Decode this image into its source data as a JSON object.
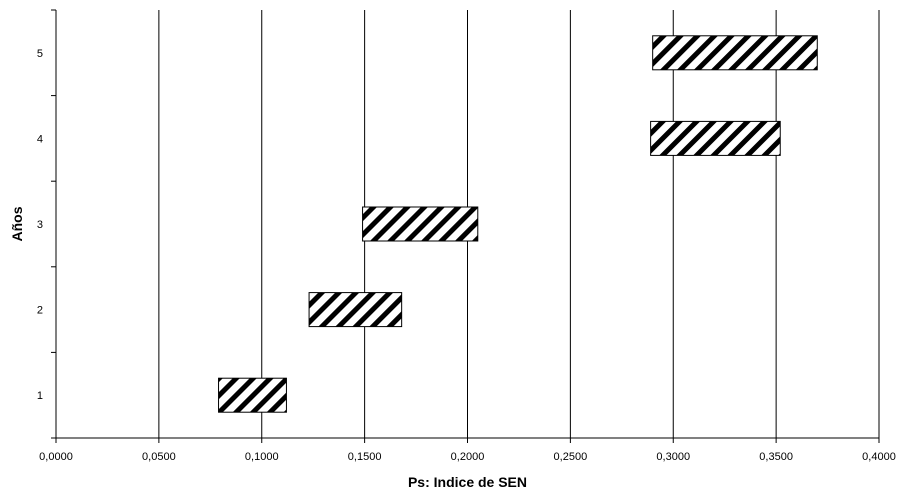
{
  "chart_data": {
    "type": "bar",
    "orientation": "horizontal-floating",
    "title": "",
    "xlabel": "Ps: Indice de SEN",
    "ylabel": "Años",
    "xlim": [
      0,
      0.4
    ],
    "ylim": [
      0.5,
      5.5
    ],
    "x_ticks": [
      0,
      0.05,
      0.1,
      0.15,
      0.2,
      0.25,
      0.3,
      0.35,
      0.4
    ],
    "x_tick_labels": [
      "0,0000",
      "0,0500",
      "0,1000",
      "0,1500",
      "0,2000",
      "0,2500",
      "0,3000",
      "0,3500",
      "0,4000"
    ],
    "categories": [
      "1",
      "2",
      "3",
      "4",
      "5"
    ],
    "ranges": [
      {
        "year": "1",
        "low": 0.079,
        "high": 0.112
      },
      {
        "year": "2",
        "low": 0.123,
        "high": 0.168
      },
      {
        "year": "3",
        "low": 0.149,
        "high": 0.205
      },
      {
        "year": "4",
        "low": 0.289,
        "high": 0.352
      },
      {
        "year": "5",
        "low": 0.29,
        "high": 0.37
      }
    ],
    "grid": "vertical",
    "legend": "none",
    "fill_pattern": "diagonal-hatch",
    "colors": {
      "bar_stroke": "#000000",
      "hatch": "#000000",
      "background": "#ffffff",
      "grid": "#000000"
    }
  }
}
